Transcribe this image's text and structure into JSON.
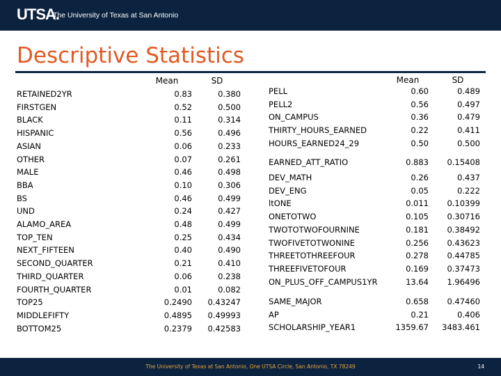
{
  "header": {
    "logo": "UTSA.",
    "logo_sub": "The University of Texas at San Antonio"
  },
  "title": "Descriptive Statistics",
  "left_table": {
    "col_mean": "Mean",
    "col_sd": "SD",
    "rows": [
      {
        "label": "RETAINED2YR",
        "mean": "0.83",
        "sd": "0.380"
      },
      {
        "label": "FIRSTGEN",
        "mean": "0.52",
        "sd": "0.500"
      },
      {
        "label": "BLACK",
        "mean": "0.11",
        "sd": "0.314"
      },
      {
        "label": "HISPANIC",
        "mean": "0.56",
        "sd": "0.496"
      },
      {
        "label": "ASIAN",
        "mean": "0.06",
        "sd": "0.233"
      },
      {
        "label": "OTHER",
        "mean": "0.07",
        "sd": "0.261"
      },
      {
        "label": "MALE",
        "mean": "0.46",
        "sd": "0.498"
      },
      {
        "label": "BBA",
        "mean": "0.10",
        "sd": "0.306"
      },
      {
        "label": "BS",
        "mean": "0.46",
        "sd": "0.499"
      },
      {
        "label": "UND",
        "mean": "0.24",
        "sd": "0.427"
      },
      {
        "label": "ALAMO_AREA",
        "mean": "0.48",
        "sd": "0.499"
      },
      {
        "label": "TOP_TEN",
        "mean": "0.25",
        "sd": "0.434"
      },
      {
        "label": "NEXT_FIFTEEN",
        "mean": "0.40",
        "sd": "0.490"
      },
      {
        "label": "SECOND_QUARTER",
        "mean": "0.21",
        "sd": "0.410"
      },
      {
        "label": "THIRD_QUARTER",
        "mean": "0.06",
        "sd": "0.238"
      },
      {
        "label": "FOURTH_QUARTER",
        "mean": "0.01",
        "sd": "0.082"
      },
      {
        "label": "TOP25",
        "mean": "0.2490",
        "sd": "0.43247"
      },
      {
        "label": "MIDDLEFIFTY",
        "mean": "0.4895",
        "sd": "0.49993"
      },
      {
        "label": "BOTTOM25",
        "mean": "0.2379",
        "sd": "0.42583"
      }
    ]
  },
  "right_table": {
    "col_mean": "Mean",
    "col_sd": "SD",
    "groups": [
      {
        "rows": [
          {
            "label": "PELL",
            "mean": "0.60",
            "sd": "0.489"
          },
          {
            "label": "PELL2",
            "mean": "0.56",
            "sd": "0.497"
          },
          {
            "label": "ON_CAMPUS",
            "mean": "0.36",
            "sd": "0.479"
          },
          {
            "label": "THIRTY_HOURS_EARNED",
            "mean": "0.22",
            "sd": "0.411"
          },
          {
            "label": "HOURS_EARNED24_29",
            "mean": "0.50",
            "sd": "0.500"
          }
        ]
      },
      {
        "rows": [
          {
            "label": "EARNED_ATT_RATIO",
            "mean": "0.883",
            "sd": "0.15408"
          }
        ]
      },
      {
        "rows": [
          {
            "label": "DEV_MATH",
            "mean": "0.26",
            "sd": "0.437"
          },
          {
            "label": "DEV_ENG",
            "mean": "0.05",
            "sd": "0.222"
          },
          {
            "label": "ltONE",
            "mean": "0.011",
            "sd": "0.10399"
          },
          {
            "label": "ONETOTWO",
            "mean": "0.105",
            "sd": "0.30716"
          },
          {
            "label": "TWOTOTWOFOURNINE",
            "mean": "0.181",
            "sd": "0.38492"
          },
          {
            "label": "TWOFIVETOTWONINE",
            "mean": "0.256",
            "sd": "0.43623"
          },
          {
            "label": "THREETOTHREEFOUR",
            "mean": "0.278",
            "sd": "0.44785"
          },
          {
            "label": "THREEFIVETOFOUR",
            "mean": "0.169",
            "sd": "0.37473"
          },
          {
            "label": "ON_PLUS_OFF_CAMPUS1YR",
            "mean": "13.64",
            "sd": "1.96496"
          }
        ]
      },
      {
        "rows": [
          {
            "label": "SAME_MAJOR",
            "mean": "0.658",
            "sd": "0.47460"
          },
          {
            "label": "AP",
            "mean": "0.21",
            "sd": "0.406"
          },
          {
            "label": "SCHOLARSHIP_YEAR1",
            "mean": "1359.67",
            "sd": "3483.461"
          }
        ]
      }
    ]
  },
  "footer": {
    "text": "The University of Texas at San Antonio, One UTSA Circle, San Antonio, TX 78249",
    "page": "14"
  },
  "colors": {
    "navy": "#0c2340",
    "orange": "#e05a26",
    "footer_text": "#e8a33d"
  }
}
